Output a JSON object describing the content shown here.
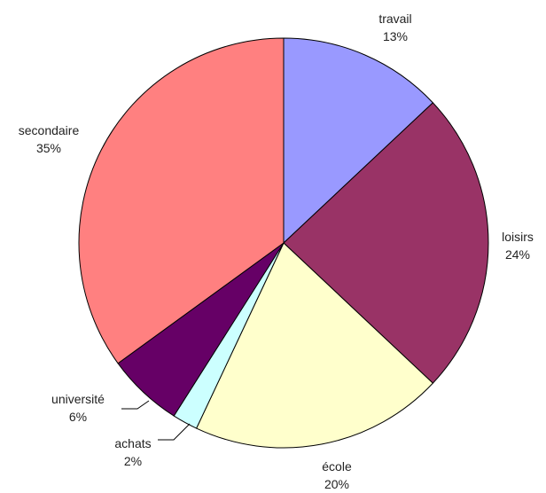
{
  "chart_data": {
    "type": "pie",
    "title": "",
    "slices": [
      {
        "name": "travail",
        "value": 13,
        "pct_label": "13%",
        "color": "#9999ff"
      },
      {
        "name": "loisirs",
        "value": 24,
        "pct_label": "24%",
        "color": "#993366"
      },
      {
        "name": "école",
        "value": 20,
        "pct_label": "20%",
        "color": "#ffffcc"
      },
      {
        "name": "achats",
        "value": 2,
        "pct_label": "2%",
        "color": "#ccffff"
      },
      {
        "name": "université",
        "value": 6,
        "pct_label": "6%",
        "color": "#660066"
      },
      {
        "name": "secondaire",
        "value": 35,
        "pct_label": "35%",
        "color": "#ff8080"
      }
    ],
    "start_angle_deg": 0,
    "direction": "clockwise",
    "legend": "none"
  }
}
